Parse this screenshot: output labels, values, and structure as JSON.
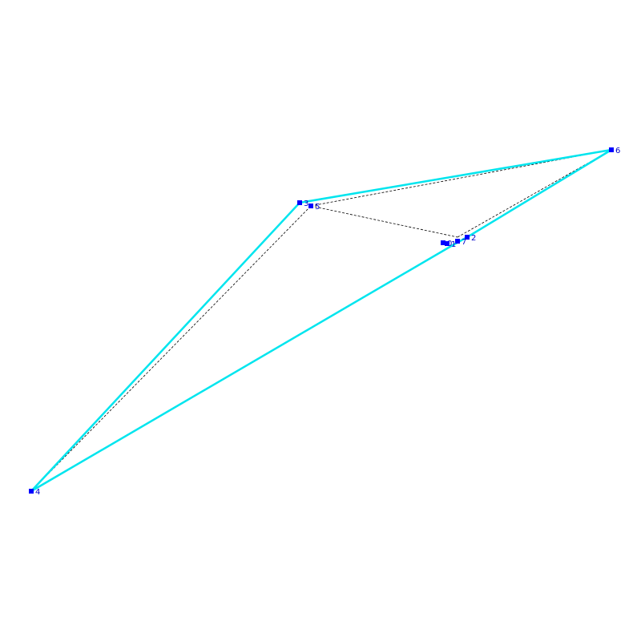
{
  "nodes": [
    {
      "label": "0"
    },
    {
      "label": "1"
    },
    {
      "label": "2"
    },
    {
      "label": "3"
    },
    {
      "label": "4"
    },
    {
      "label": "5"
    },
    {
      "label": "6"
    },
    {
      "label": "7"
    }
  ]
}
